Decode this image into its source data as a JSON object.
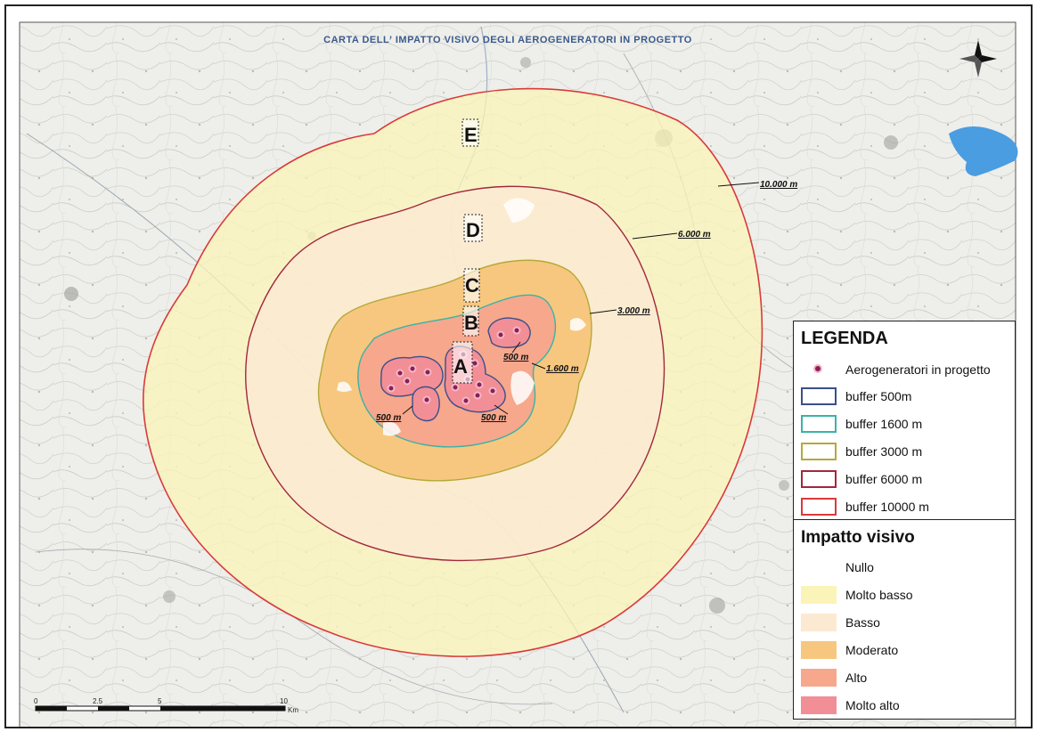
{
  "map": {
    "title": "CARTA DELL' IMPATTO VISIVO DEGLI AEROGENERATORI IN PROGETTO",
    "zones": [
      "A",
      "B",
      "C",
      "D",
      "E"
    ],
    "distance_labels": {
      "d10000": "10.000 m",
      "d6000": "6.000 m",
      "d3000": "3.000 m",
      "d1600": "1.600 m",
      "d500a": "500 m",
      "d500b": "500 m",
      "d500c": "500 m"
    },
    "scale": {
      "ticks": [
        "0",
        "2.5",
        "5",
        "10"
      ],
      "unit": "Km"
    },
    "colors": {
      "buffer_500": "#3a4f8a",
      "buffer_1600": "#3ab3a6",
      "buffer_3000": "#b4a93a",
      "buffer_6000": "#a3273a",
      "buffer_10000": "#d93a3a",
      "molto_basso": "#fbf4b8",
      "basso": "#fbe9d2",
      "moderato": "#f7c77f",
      "alto": "#f6a78c",
      "molto_alto": "#f28e96",
      "turbine": "#8a1f55",
      "lake": "#4a9de0"
    }
  },
  "legend": {
    "title": "LEGENDA",
    "turbine_label": "Aerogeneratori in progetto",
    "buffers": [
      {
        "label": "buffer   500m",
        "color": "#3a4f8a"
      },
      {
        "label": "buffer  1600 m",
        "color": "#3ab3a6"
      },
      {
        "label": "buffer  3000 m",
        "color": "#b4a93a"
      },
      {
        "label": "buffer  6000 m",
        "color": "#a3273a"
      },
      {
        "label": "buffer 10000 m",
        "color": "#d93a3a"
      }
    ],
    "impact_title": "Impatto visivo",
    "impacts": [
      {
        "label": "Nullo",
        "color": "#ffffff"
      },
      {
        "label": "Molto basso",
        "color": "#fbf4b8"
      },
      {
        "label": "Basso",
        "color": "#fbe9d2"
      },
      {
        "label": "Moderato",
        "color": "#f7c77f"
      },
      {
        "label": "Alto",
        "color": "#f6a78c"
      },
      {
        "label": "Molto alto",
        "color": "#f28e96"
      }
    ]
  }
}
